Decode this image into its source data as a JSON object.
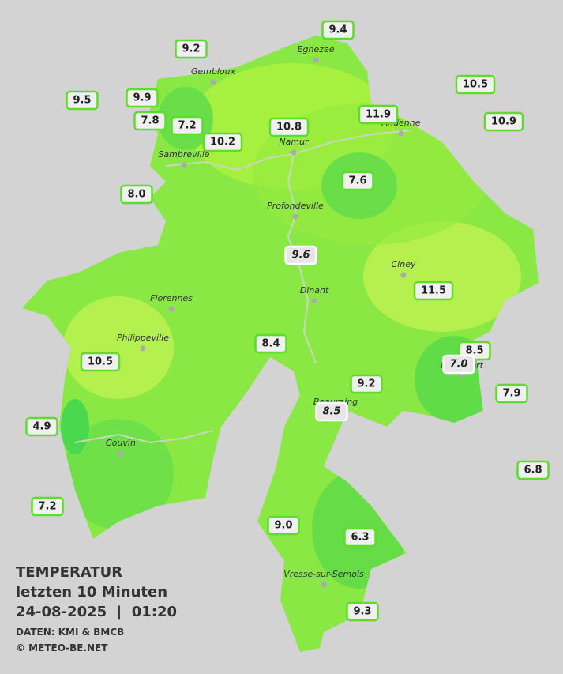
{
  "title": "TEMPERATUR",
  "subtitle": "letzten 10 Minuten",
  "datetime": "24-08-2025  |  01:20",
  "source": "DATEN: KMI & BMCB",
  "credit": "© METEO-BE.NET",
  "towns": [
    "Eghezee",
    "Gembloux",
    "Andenne",
    "Namur",
    "Sambreville",
    "Profondeville",
    "Ciney",
    "Dinant",
    "Florennes",
    "Philippeville",
    "Rochefort",
    "Beauraing",
    "Couvin",
    "Vresse-sur-Semois"
  ],
  "readings": [
    "9.4",
    "9.2",
    "10.5",
    "9.5",
    "9.9",
    "7.8",
    "7.2",
    "10.8",
    "11.9",
    "10.9",
    "10.2",
    "8.0",
    "7.6",
    "9.6",
    "11.5",
    "8.4",
    "8.5",
    "7.0",
    "10.5",
    "9.2",
    "7.9",
    "8.5",
    "4.9",
    "6.8",
    "7.2",
    "9.0",
    "6.3",
    "9.3"
  ]
}
